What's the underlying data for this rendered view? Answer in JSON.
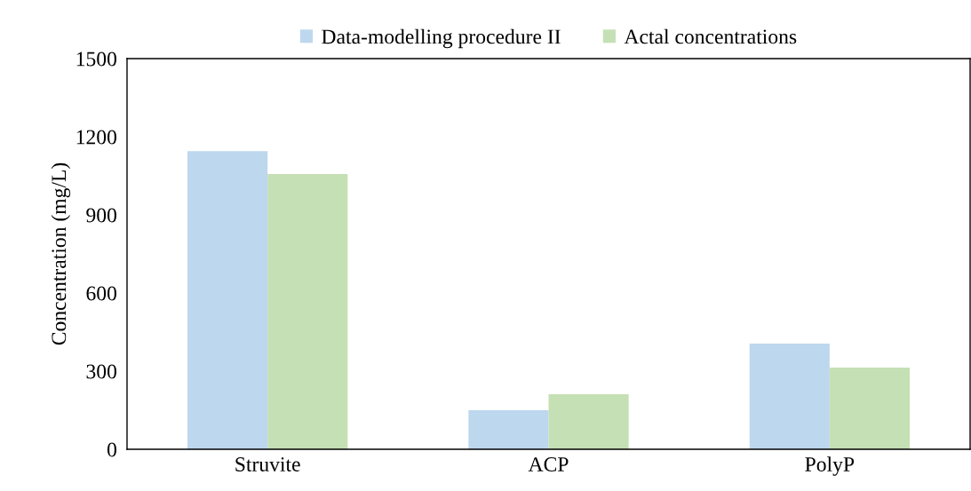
{
  "chart_data": {
    "type": "bar",
    "ylabel": "Concentration (mg/L)",
    "categories": [
      "Struvite",
      "ACP",
      "PolyP"
    ],
    "series": [
      {
        "name": "Data-modelling procedure II",
        "color": "#bdd7ee",
        "values": [
          1145,
          150,
          406
        ]
      },
      {
        "name": "Actal concentrations",
        "color": "#c5e0b4",
        "values": [
          1057,
          211,
          314
        ]
      }
    ],
    "ylim": [
      0,
      1500
    ],
    "yticks": [
      0,
      300,
      600,
      900,
      1200,
      1500
    ],
    "grid": false,
    "legend": "top"
  }
}
